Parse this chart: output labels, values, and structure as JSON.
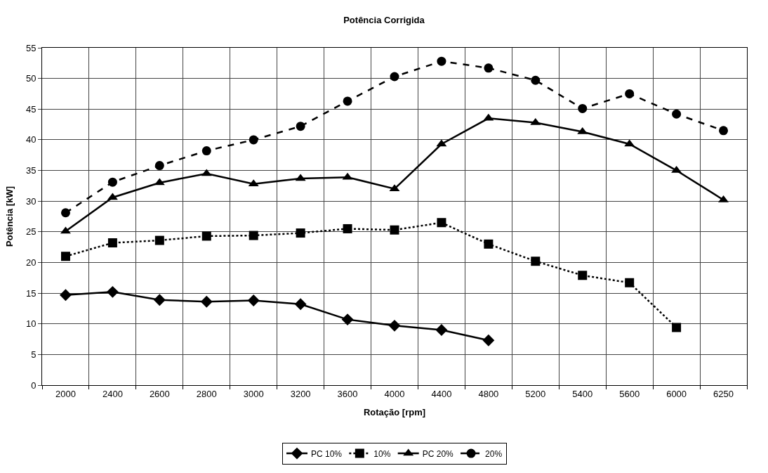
{
  "chart_data": {
    "type": "line",
    "title": "Potência Corrigida",
    "xlabel": "Rotação [rpm]",
    "ylabel": "Potência [kW]",
    "categories": [
      "2000",
      "2400",
      "2600",
      "2800",
      "3000",
      "3200",
      "3600",
      "4000",
      "4400",
      "4800",
      "5200",
      "5400",
      "5600",
      "6000",
      "6250"
    ],
    "ylim": [
      0,
      55
    ],
    "yticks": [
      0,
      5,
      10,
      15,
      20,
      25,
      30,
      35,
      40,
      45,
      50,
      55
    ],
    "grid": true,
    "legend": "bottom",
    "series": [
      {
        "name": "PC 10%",
        "color": "#000000",
        "marker": "diamond",
        "line_style": "solid",
        "values": [
          14.7,
          15.2,
          13.9,
          13.6,
          13.8,
          13.2,
          10.7,
          9.7,
          9.0,
          7.3,
          null,
          null,
          null,
          null,
          null
        ]
      },
      {
        "name": "10%",
        "color": "#000000",
        "marker": "square",
        "line_style": "dotted",
        "values": [
          21.0,
          23.2,
          23.6,
          24.3,
          24.4,
          24.8,
          25.5,
          25.3,
          26.5,
          23.0,
          20.2,
          17.9,
          16.7,
          9.4,
          null
        ]
      },
      {
        "name": "PC 20%",
        "color": "#000000",
        "marker": "triangle",
        "line_style": "solid",
        "values": [
          25.1,
          30.6,
          33.0,
          34.5,
          32.8,
          33.7,
          33.9,
          32.0,
          39.3,
          43.5,
          42.8,
          41.3,
          39.3,
          35.0,
          30.2
        ]
      },
      {
        "name": "20%",
        "color": "#000000",
        "marker": "circle",
        "line_style": "dashed",
        "values": [
          28.1,
          33.1,
          35.8,
          38.2,
          40.0,
          42.2,
          46.3,
          50.3,
          52.8,
          51.7,
          49.7,
          45.1,
          47.5,
          44.2,
          41.5
        ]
      }
    ]
  }
}
